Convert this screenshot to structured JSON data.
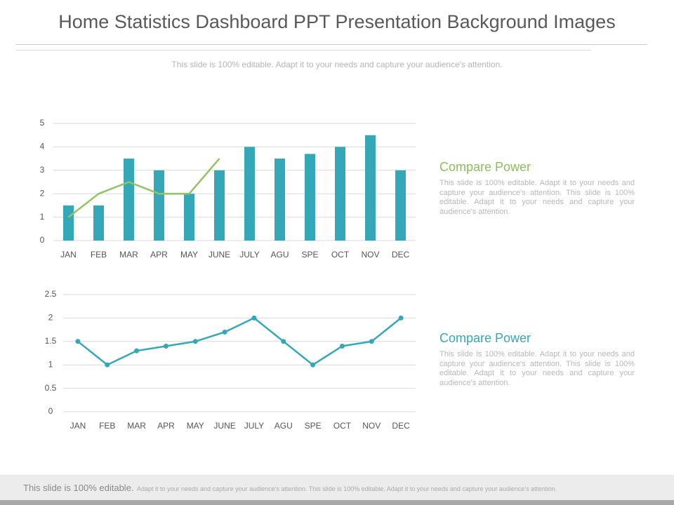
{
  "title": "Home Statistics Dashboard PPT Presentation Background Images",
  "subtitle": "This slide is 100% editable. Adapt it to your needs and capture your audience's attention.",
  "chart_data": [
    {
      "type": "bar",
      "categories": [
        "JAN",
        "FEB",
        "MAR",
        "APR",
        "MAY",
        "JUNE",
        "JULY",
        "AGU",
        "SPE",
        "OCT",
        "NOV",
        "DEC"
      ],
      "series": [
        {
          "type": "bar",
          "color": "#35a8b8",
          "values": [
            1.5,
            1.5,
            3.5,
            3,
            2,
            3,
            4,
            3.5,
            3.7,
            4,
            4.5,
            3
          ]
        },
        {
          "type": "line",
          "color": "#93c363",
          "values": [
            1,
            2,
            2.5,
            2,
            2,
            3.5,
            null,
            null,
            null,
            null,
            null,
            null
          ]
        }
      ],
      "ylim": [
        0,
        5
      ],
      "yticks": [
        0,
        1,
        2,
        3,
        4,
        5
      ],
      "grid": true
    },
    {
      "type": "line",
      "categories": [
        "JAN",
        "FEB",
        "MAR",
        "APR",
        "MAY",
        "JUNE",
        "JULY",
        "AGU",
        "SPE",
        "OCT",
        "NOV",
        "DEC"
      ],
      "series": [
        {
          "type": "line",
          "color": "#35a8b8",
          "values": [
            1.5,
            1,
            1.3,
            1.4,
            1.5,
            1.7,
            2,
            1.5,
            1,
            1.4,
            1.5,
            2
          ]
        }
      ],
      "ylim": [
        0,
        2.5
      ],
      "yticks": [
        0,
        0.5,
        1,
        1.5,
        2,
        2.5
      ],
      "grid": true
    }
  ],
  "panels": [
    {
      "heading": "Compare Power",
      "color": "#8cbf5a",
      "text": "This slide is 100% editable. Adapt it to your needs and capture your audience's attention. This slide is 100% editable. Adapt it to your needs and capture your audience's attention."
    },
    {
      "heading": "Compare Power",
      "color": "#35a8b8",
      "text": "This slide is 100% editable. Adapt it to your needs and capture your audience's attention. This slide is 100% editable. Adapt it to your needs and capture your audience's attention."
    }
  ],
  "footer": {
    "lead": "This slide is 100% editable.",
    "text": "Adapt it to your needs and capture your audience's attention. This slide is 100% editable. Adapt it to your needs and capture your audience's attention."
  }
}
